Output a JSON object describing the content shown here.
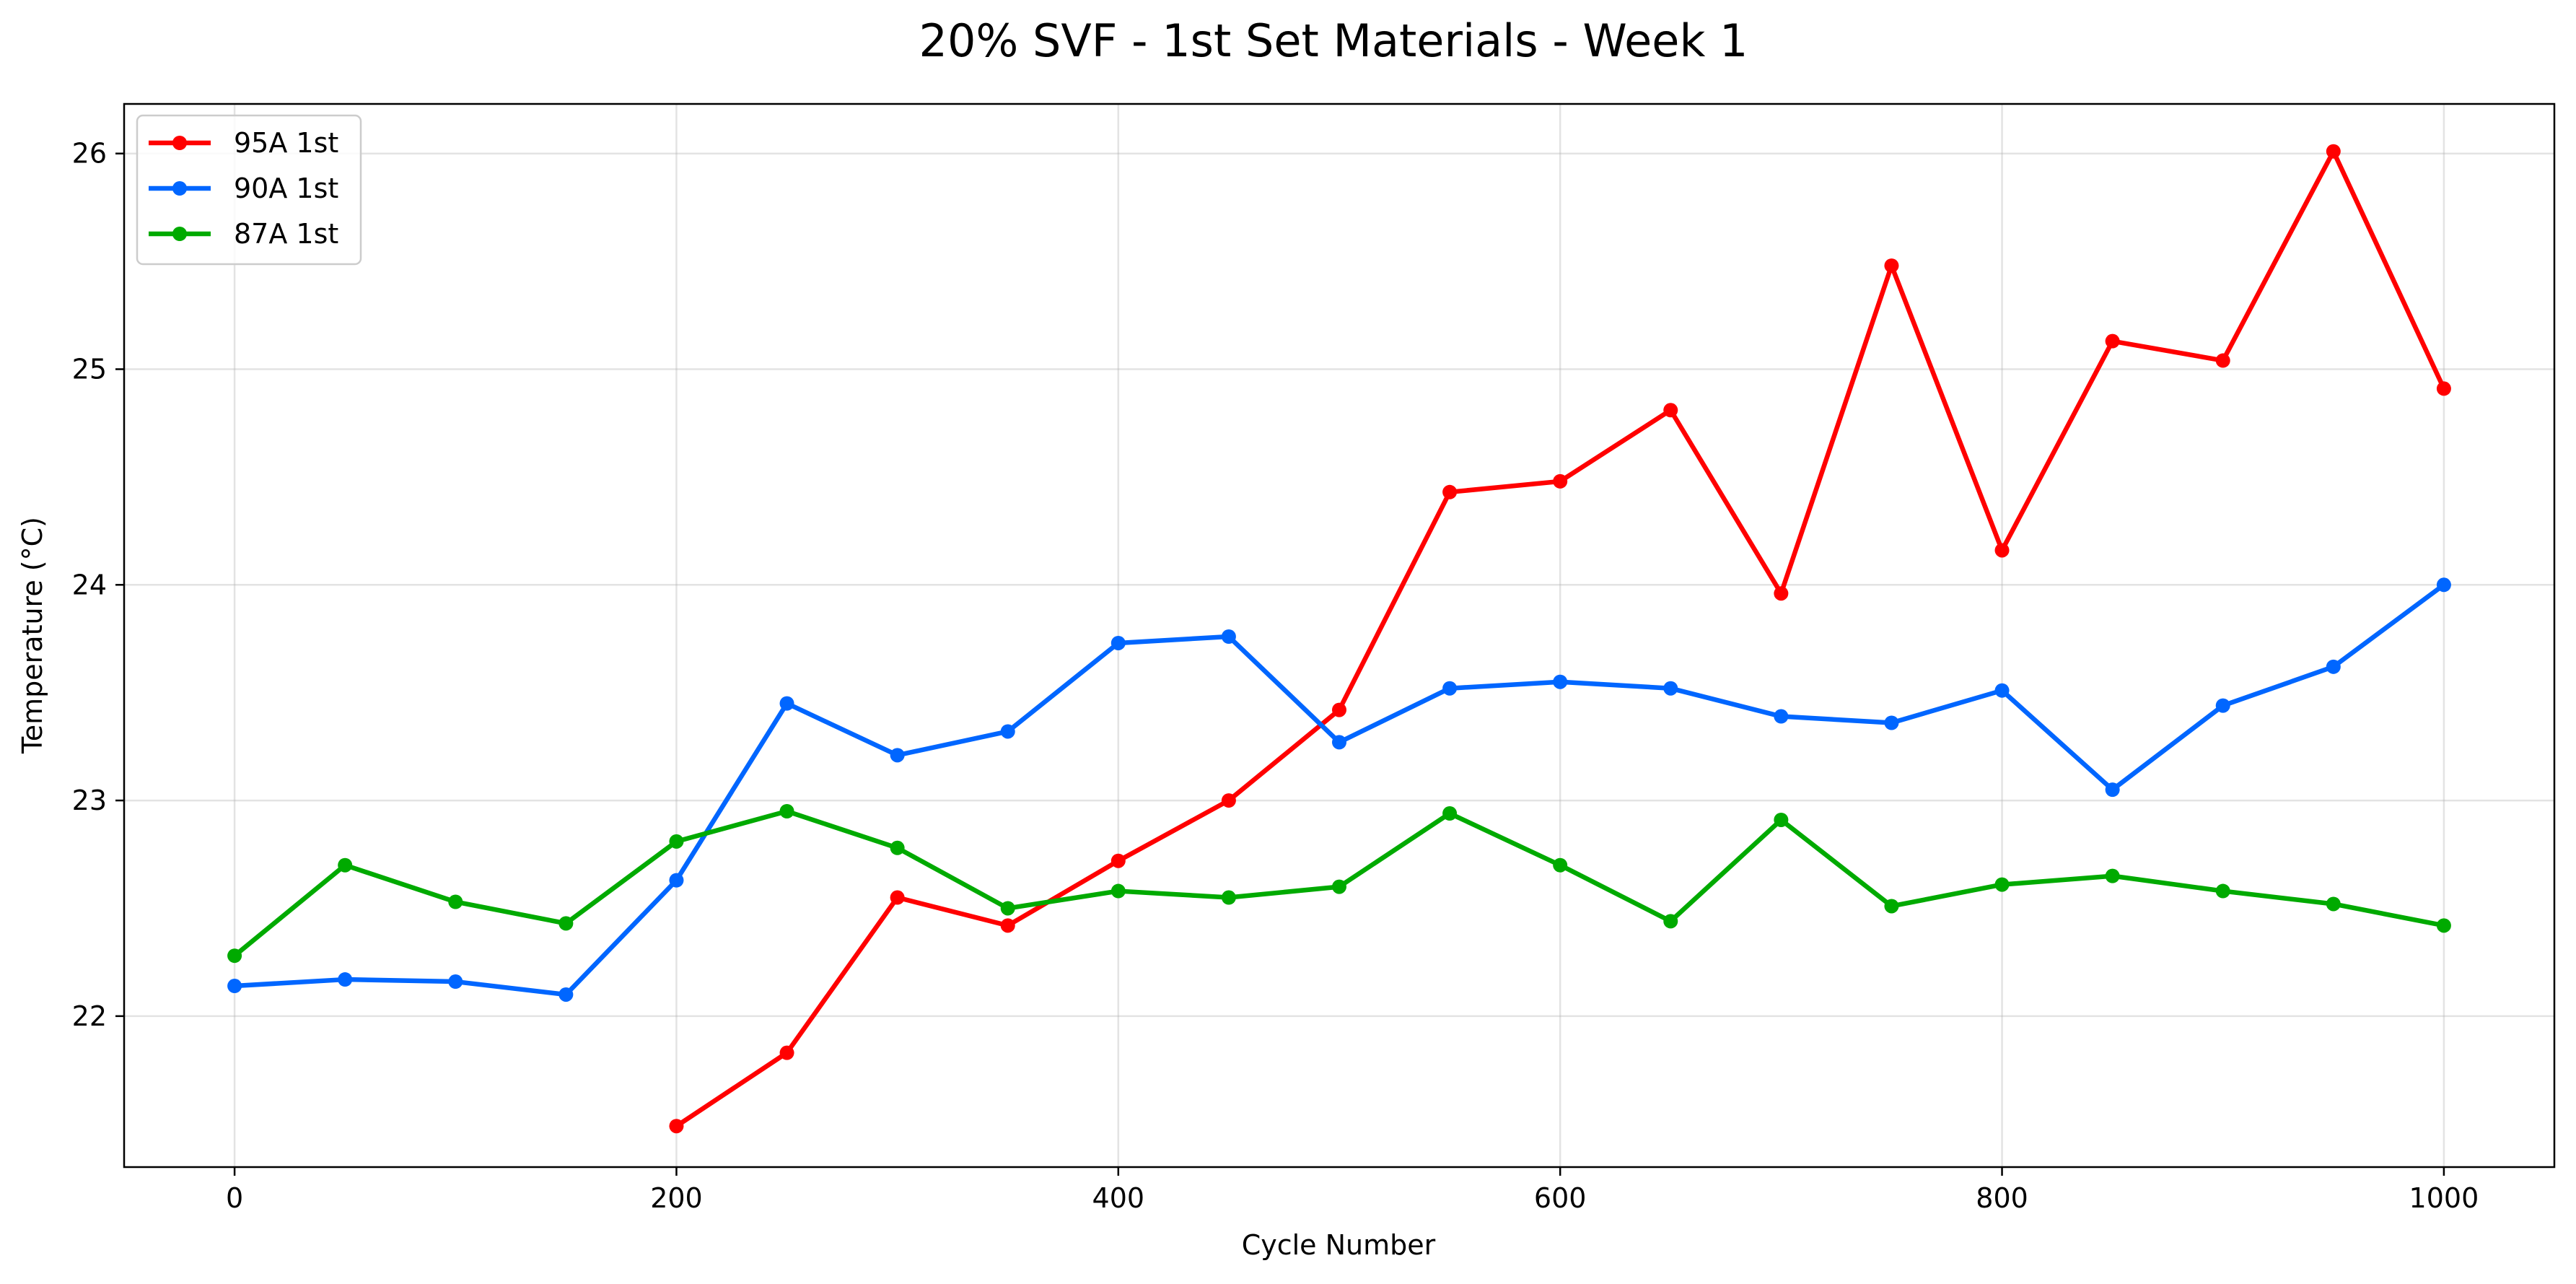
{
  "chart_data": {
    "type": "line",
    "title": "20% SVF - 1st Set Materials - Week 1",
    "xlabel": "Cycle Number",
    "ylabel": "Temperature (°C)",
    "xlim": [
      -50,
      1050
    ],
    "ylim": [
      21.3,
      26.23
    ],
    "xticks": [
      0,
      200,
      400,
      600,
      800,
      1000
    ],
    "yticks": [
      22,
      23,
      24,
      25,
      26
    ],
    "grid": true,
    "legend_position": "top-left",
    "series": [
      {
        "name": "95A 1st",
        "color": "#ff0000",
        "x": [
          200,
          250,
          300,
          350,
          400,
          450,
          500,
          550,
          600,
          650,
          700,
          750,
          800,
          850,
          900,
          950,
          1000
        ],
        "y": [
          21.49,
          21.83,
          22.55,
          22.42,
          22.72,
          23.0,
          23.42,
          24.43,
          24.48,
          24.81,
          23.96,
          25.48,
          24.16,
          25.13,
          25.04,
          26.01,
          24.91
        ]
      },
      {
        "name": "90A 1st",
        "color": "#0066ff",
        "x": [
          0,
          50,
          100,
          150,
          200,
          250,
          300,
          350,
          400,
          450,
          500,
          550,
          600,
          650,
          700,
          750,
          800,
          850,
          900,
          950,
          1000
        ],
        "y": [
          22.14,
          22.17,
          22.16,
          22.1,
          22.63,
          23.45,
          23.21,
          23.32,
          23.73,
          23.76,
          23.27,
          23.52,
          23.55,
          23.52,
          23.39,
          23.36,
          23.51,
          23.05,
          23.44,
          23.62,
          24.0
        ]
      },
      {
        "name": "87A 1st",
        "color": "#00aa00",
        "x": [
          0,
          50,
          100,
          150,
          200,
          250,
          300,
          350,
          400,
          450,
          500,
          550,
          600,
          650,
          700,
          750,
          800,
          850,
          900,
          950,
          1000
        ],
        "y": [
          22.28,
          22.7,
          22.53,
          22.43,
          22.81,
          22.95,
          22.78,
          22.5,
          22.58,
          22.55,
          22.6,
          22.94,
          22.7,
          22.44,
          22.91,
          22.51,
          22.61,
          22.65,
          22.58,
          22.52,
          22.42
        ]
      }
    ]
  }
}
